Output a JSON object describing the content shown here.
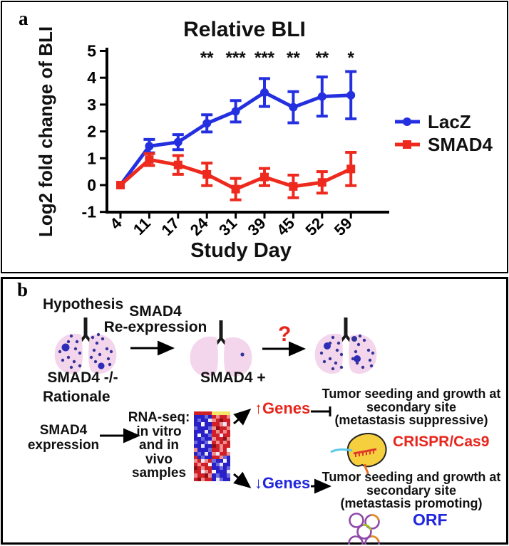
{
  "panel_a": {
    "label": "a"
  },
  "chart_data": {
    "type": "line",
    "title": "Relative BLI",
    "xlabel": "Study Day",
    "ylabel": "Log2 fold change of BLI",
    "categories": [
      "4",
      "11",
      "17",
      "24",
      "31",
      "39",
      "45",
      "52",
      "59"
    ],
    "ylim": [
      -1,
      5
    ],
    "yticks": [
      -1,
      0,
      1,
      2,
      3,
      4,
      5
    ],
    "grid": false,
    "legend_position": "right",
    "significance": [
      {
        "day": "24",
        "label": "**"
      },
      {
        "day": "31",
        "label": "***"
      },
      {
        "day": "39",
        "label": "***"
      },
      {
        "day": "45",
        "label": "**"
      },
      {
        "day": "52",
        "label": "**"
      },
      {
        "day": "59",
        "label": "*"
      }
    ],
    "series": [
      {
        "name": "LacZ",
        "color": "#2430e0",
        "marker": "circle",
        "values": [
          0,
          1.45,
          1.6,
          2.3,
          2.75,
          3.45,
          2.9,
          3.3,
          3.35
        ],
        "errors": [
          0,
          0.25,
          0.28,
          0.32,
          0.4,
          0.52,
          0.58,
          0.73,
          0.88
        ]
      },
      {
        "name": "SMAD4",
        "color": "#ee2a1e",
        "marker": "square",
        "values": [
          0,
          0.95,
          0.75,
          0.4,
          -0.15,
          0.3,
          -0.05,
          0.1,
          0.6
        ],
        "errors": [
          0,
          0.22,
          0.35,
          0.42,
          0.4,
          0.32,
          0.42,
          0.4,
          0.62
        ]
      }
    ]
  },
  "panel_b": {
    "label": "b",
    "hypothesis_label": "Hypothesis",
    "reexpression_lines": [
      "SMAD4",
      "Re-expression"
    ],
    "lung1_label": "SMAD4 -/-",
    "rationale_label": "Rationale",
    "lung2_label": "SMAD4 +",
    "question_mark": "?",
    "expression_lines": [
      "SMAD4",
      "expression"
    ],
    "rnaseq_lines": [
      "RNA-seq:",
      "in vitro",
      "and in",
      "vivo",
      "samples"
    ],
    "genes_up_label": "↑Genes",
    "genes_down_label": "↓Genes",
    "outcome_suppressive_lines": [
      "Tumor seeding and growth at",
      "secondary site",
      "(metastasis suppressive)"
    ],
    "outcome_promoting_lines": [
      "Tumor seeding and growth at",
      "secondary site",
      "(metastasis promoting)"
    ],
    "crispr_label": "CRISPR/Cas9",
    "orf_label": "ORF",
    "colors": {
      "genes_up": "#e8251b",
      "genes_down": "#2026dd",
      "crispr": "#e8251b",
      "orf": "#2026dd",
      "question": "#e8251b",
      "lung_fill": "#f3d5ec",
      "tumor_dot": "#34349a",
      "tumor_dot_large": "#2d2db8",
      "cas9_body": "#f6cf3f",
      "grna_line": "#5cc8e8",
      "plasmid_ring": "#9049a8"
    },
    "heatmap": {
      "palette": {
        "B": "#2a20c8",
        "b": "#6b6bdc",
        "W": "#e8e8f8",
        "R": "#d01f26",
        "r": "#ee8e8e",
        "D": "#8f1016",
        "Y": "#f3e566",
        "w": "#f6f6ff"
      },
      "rows": [
        "RRRRRYYYYY",
        "BBBbBRrRRr",
        "BbBBWrRDRR",
        "BBwBBRRrWR",
        "bBBBbrDRRr",
        "BBBWBRrRrR",
        "BwBBbRRWRR",
        "BBbBBrRRDr",
        "bBBbWRrRrR",
        "BBWBBDRrRR",
        "rBBBbRRrRw",
        "BbBWBrWRRr",
        "RBbBBRRrbB",
        "rRWrRbBBwB",
        "RrRRwBbWBB",
        "DRrRRBBbBb",
        "RRWrRwBBBW",
        "rRRDrBbBBb",
        "RDrRRBWbBB"
      ]
    }
  }
}
